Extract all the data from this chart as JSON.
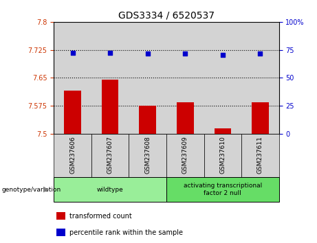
{
  "title": "GDS3334 / 6520537",
  "samples": [
    "GSM237606",
    "GSM237607",
    "GSM237608",
    "GSM237609",
    "GSM237610",
    "GSM237611"
  ],
  "bar_values": [
    7.615,
    7.645,
    7.575,
    7.585,
    7.515,
    7.585
  ],
  "scatter_values": [
    72.5,
    72.5,
    71.5,
    71.5,
    70.5,
    71.5
  ],
  "left_ylim": [
    7.5,
    7.8
  ],
  "right_ylim": [
    0,
    100
  ],
  "left_yticks": [
    7.5,
    7.575,
    7.65,
    7.725,
    7.8
  ],
  "right_yticks": [
    0,
    25,
    50,
    75,
    100
  ],
  "left_ytick_labels": [
    "7.5",
    "7.575",
    "7.65",
    "7.725",
    "7.8"
  ],
  "right_ytick_labels": [
    "0",
    "25",
    "50",
    "75",
    "100%"
  ],
  "hline_values": [
    7.575,
    7.65,
    7.725
  ],
  "bar_color": "#cc0000",
  "scatter_color": "#0000cc",
  "bar_base": 7.5,
  "groups": [
    {
      "label": "wildtype",
      "indices": [
        0,
        1,
        2
      ],
      "color": "#99ee99"
    },
    {
      "label": "activating transcriptional\nfactor 2 null",
      "indices": [
        3,
        4,
        5
      ],
      "color": "#66dd66"
    }
  ],
  "legend_items": [
    {
      "color": "#cc0000",
      "label": "transformed count"
    },
    {
      "color": "#0000cc",
      "label": "percentile rank within the sample"
    }
  ],
  "genotype_label": "genotype/variation",
  "subplot_bg": "#d3d3d3",
  "green_color": "#66dd66"
}
